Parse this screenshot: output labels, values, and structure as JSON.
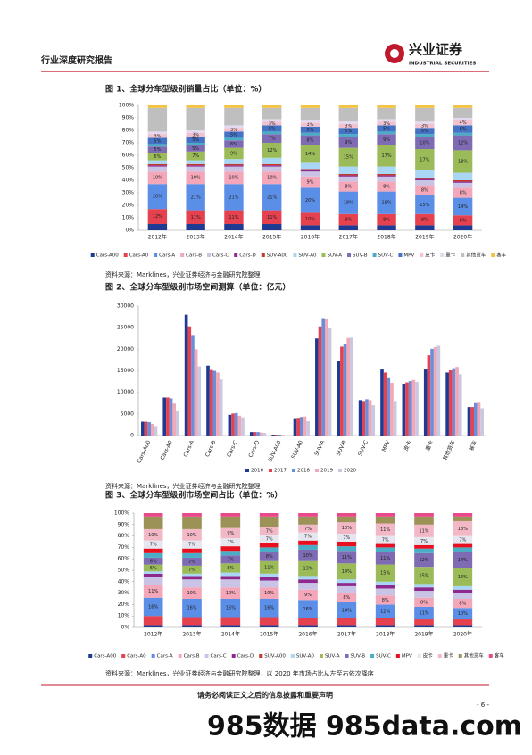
{
  "header": {
    "title": "行业深度研究报告",
    "logo_cn": "兴业证券",
    "logo_en": "INDUSTRIAL SECURITIES"
  },
  "chart_data": [
    {
      "type": "bar",
      "stacked": true,
      "title": "图 1、全球分车型级别销量占比（单位：%）",
      "categories": [
        "2012年",
        "2013年",
        "2014年",
        "2015年",
        "2016年",
        "2017年",
        "2018年",
        "2019年",
        "2020年"
      ],
      "ylim": [
        0,
        100
      ],
      "yticks": [
        {
          "value": 0,
          "label": "0%"
        },
        {
          "value": 10,
          "label": "10%"
        },
        {
          "value": 20,
          "label": "20%"
        },
        {
          "value": 30,
          "label": "30%"
        },
        {
          "value": 40,
          "label": "40%"
        },
        {
          "value": 50,
          "label": "50%"
        },
        {
          "value": 60,
          "label": "60%"
        },
        {
          "value": 70,
          "label": "70%"
        },
        {
          "value": 80,
          "label": "80%"
        },
        {
          "value": 90,
          "label": "90%"
        },
        {
          "value": 100,
          "label": "100%"
        }
      ],
      "series": [
        {
          "name": "Cars-A00",
          "color": "#1f3a93",
          "values": [
            5,
            5,
            5,
            5,
            4,
            4,
            4,
            4,
            4
          ]
        },
        {
          "name": "Cars-A0",
          "color": "#e5414f",
          "values": [
            12,
            11,
            11,
            11,
            10,
            9,
            9,
            9,
            8
          ],
          "value_labels": [
            "12%",
            "11%",
            "11%",
            "11%",
            "10%",
            "9%",
            "9%",
            "9%",
            "8%"
          ]
        },
        {
          "name": "Cars-A",
          "color": "#5b8ee6",
          "values": [
            20,
            21,
            21,
            21,
            20,
            18,
            18,
            15,
            14
          ],
          "value_labels": [
            "20%",
            "21%",
            "21%",
            "21%",
            "20%",
            "18%",
            "18%",
            "15%",
            "14%"
          ]
        },
        {
          "name": "Cars-B",
          "color": "#f4a7b9",
          "values": [
            10,
            10,
            10,
            10,
            9,
            8,
            8,
            8,
            8
          ],
          "value_labels": [
            "10%",
            "10%",
            "10%",
            "10%",
            "9%",
            "8%",
            "8%",
            "8%",
            "8%"
          ]
        },
        {
          "name": "Cars-C",
          "color": "#c9c3e6",
          "values": [
            4,
            4,
            4,
            4,
            4,
            4,
            4,
            4,
            4
          ]
        },
        {
          "name": "Cars-D",
          "color": "#8e2a8e",
          "values": [
            1,
            1,
            1,
            1,
            1,
            1,
            1,
            1,
            1
          ]
        },
        {
          "name": "SUV-A00",
          "color": "#c0392b",
          "values": [
            1,
            1,
            1,
            1,
            1,
            1,
            1,
            1,
            1
          ]
        },
        {
          "name": "SUV-A0",
          "color": "#a9d6f5",
          "values": [
            3,
            3,
            4,
            5,
            5,
            6,
            6,
            6,
            6
          ]
        },
        {
          "name": "SUV-A",
          "color": "#9bbb59",
          "values": [
            6,
            7,
            9,
            12,
            14,
            15,
            17,
            17,
            18
          ],
          "value_labels": [
            "6%",
            "7%",
            "9%",
            "12%",
            "14%",
            "15%",
            "17%",
            "17%",
            "18%"
          ]
        },
        {
          "name": "SUV-B",
          "color": "#7e6bb3",
          "values": [
            5,
            5,
            6,
            7,
            8,
            9,
            9,
            10,
            12
          ],
          "value_labels": [
            "5%",
            "5%",
            "6%",
            "7%",
            "8%",
            "9%",
            "9%",
            "10%",
            "12%"
          ]
        },
        {
          "name": "SUV-C",
          "color": "#4bacc6",
          "values": [
            2,
            2,
            2,
            2,
            2,
            2,
            2,
            2,
            2
          ]
        },
        {
          "name": "MPV",
          "color": "#4472c4",
          "values": [
            5,
            5,
            5,
            5,
            5,
            5,
            5,
            5,
            6
          ],
          "value_labels": [
            "5%",
            "5%",
            "5%",
            "5%",
            "5%",
            "5%",
            "5%",
            "5%",
            "6%"
          ]
        },
        {
          "name": "皮卡",
          "color": "#f2c2d0",
          "values": [
            3,
            3,
            3,
            3,
            3,
            3,
            3,
            3,
            4
          ],
          "value_labels": [
            "3%",
            "3%",
            "3%",
            "3%",
            "3%",
            "3%",
            "3%",
            "3%",
            "4%"
          ]
        },
        {
          "name": "重卡",
          "color": "#e4d9ef",
          "values": [
            2,
            2,
            2,
            2,
            2,
            2,
            2,
            2,
            2
          ]
        },
        {
          "name": "其他货车",
          "color": "#bfbfbf",
          "values": [
            19,
            18,
            14,
            9,
            10,
            11,
            9,
            11,
            8
          ]
        },
        {
          "name": "客车",
          "color": "#f5c342",
          "values": [
            2,
            2,
            2,
            2,
            2,
            2,
            2,
            2,
            2
          ]
        }
      ]
    },
    {
      "type": "bar",
      "stacked": false,
      "title": "图 2、全球分车型级别市场空间测算（单位：亿元）",
      "categories": [
        "Cars-A00",
        "Cars-A0",
        "Cars-A",
        "Cars-B",
        "Cars-C",
        "Cars-D",
        "SUV-A00",
        "SUV-A0",
        "SUV-A",
        "SUV-B",
        "SUV-C",
        "MPV",
        "皮卡",
        "重卡",
        "其他货车",
        "客车"
      ],
      "ylim": [
        0,
        30000
      ],
      "yticks": [
        0,
        5000,
        10000,
        15000,
        20000,
        25000,
        30000
      ],
      "series": [
        {
          "name": "2016",
          "color": "#1f3a93",
          "values": [
            3200,
            8800,
            28000,
            16200,
            4800,
            800,
            200,
            4000,
            22500,
            17300,
            8200,
            15300,
            12000,
            15300,
            14600,
            6600
          ]
        },
        {
          "name": "2017",
          "color": "#e5414f",
          "values": [
            3200,
            8800,
            25300,
            15200,
            5100,
            800,
            200,
            4100,
            25300,
            20600,
            8000,
            14600,
            12300,
            18600,
            15100,
            6600
          ]
        },
        {
          "name": "2018",
          "color": "#6a8fd8",
          "values": [
            3100,
            8600,
            23300,
            15000,
            5200,
            800,
            200,
            4300,
            27200,
            21200,
            8400,
            13500,
            12600,
            20100,
            15600,
            7500
          ]
        },
        {
          "name": "2019",
          "color": "#f2a8b6",
          "values": [
            2700,
            7400,
            20000,
            14600,
            4600,
            700,
            150,
            4400,
            27100,
            22600,
            8200,
            12200,
            12900,
            20500,
            15900,
            7600
          ]
        },
        {
          "name": "2020",
          "color": "#c8c8e0",
          "values": [
            2200,
            5800,
            16000,
            13000,
            4200,
            600,
            100,
            3300,
            24900,
            22700,
            7000,
            8000,
            12400,
            20800,
            14200,
            6300
          ]
        }
      ]
    },
    {
      "type": "bar",
      "stacked": true,
      "title": "图 3、全球分车型级别市场空间占比（单位：%）",
      "categories": [
        "2012年",
        "2013年",
        "2014年",
        "2015年",
        "2016年",
        "2017年",
        "2018年",
        "2019年",
        "2020年"
      ],
      "ylim": [
        0,
        100
      ],
      "yticks": [
        {
          "value": 0,
          "label": "0%"
        },
        {
          "value": 10,
          "label": "10%"
        },
        {
          "value": 20,
          "label": "20%"
        },
        {
          "value": 30,
          "label": "30%"
        },
        {
          "value": 40,
          "label": "40%"
        },
        {
          "value": 50,
          "label": "50%"
        },
        {
          "value": 60,
          "label": "60%"
        },
        {
          "value": 70,
          "label": "70%"
        },
        {
          "value": 80,
          "label": "80%"
        },
        {
          "value": 90,
          "label": "90%"
        },
        {
          "value": 100,
          "label": "100%"
        }
      ],
      "series": [
        {
          "name": "Cars-A00",
          "color": "#1f3a93",
          "values": [
            2,
            2,
            2,
            2,
            2,
            2,
            2,
            2,
            2
          ]
        },
        {
          "name": "Cars-A0",
          "color": "#e5414f",
          "values": [
            8,
            7,
            7,
            7,
            6,
            6,
            6,
            5,
            5
          ]
        },
        {
          "name": "Cars-A",
          "color": "#5b8ee6",
          "values": [
            16,
            16,
            16,
            16,
            16,
            14,
            12,
            11,
            10
          ],
          "value_labels": [
            "16%",
            "16%",
            "16%",
            "16%",
            "16%",
            "14%",
            "12%",
            "11%",
            "10%"
          ]
        },
        {
          "name": "Cars-B",
          "color": "#f4a7b9",
          "values": [
            11,
            10,
            10,
            10,
            9,
            8,
            8,
            8,
            8
          ],
          "value_labels": [
            "11%",
            "10%",
            "10%",
            "10%",
            "9%",
            "8%",
            "8%",
            "8%",
            "8%"
          ]
        },
        {
          "name": "Cars-C",
          "color": "#c9c3e6",
          "values": [
            7,
            7,
            7,
            6,
            6,
            6,
            6,
            6,
            5
          ]
        },
        {
          "name": "Cars-D",
          "color": "#8e2a8e",
          "values": [
            3,
            3,
            3,
            3,
            3,
            3,
            3,
            3,
            3
          ]
        },
        {
          "name": "SUV-A00",
          "color": "#c0392b",
          "values": [
            0,
            0,
            0,
            0,
            0,
            0,
            0,
            0,
            0
          ]
        },
        {
          "name": "SUV-A0",
          "color": "#a9d6f5",
          "values": [
            2,
            2,
            3,
            3,
            3,
            3,
            3,
            3,
            3
          ]
        },
        {
          "name": "SUV-A",
          "color": "#9bbb59",
          "values": [
            6,
            7,
            8,
            11,
            13,
            14,
            15,
            15,
            16
          ],
          "value_labels": [
            "6%",
            "7%",
            "8%",
            "11%",
            "13%",
            "14%",
            "15%",
            "15%",
            "16%"
          ]
        },
        {
          "name": "SUV-B",
          "color": "#7e6bb3",
          "values": [
            6,
            7,
            7,
            8,
            10,
            11,
            11,
            12,
            14
          ],
          "value_labels": [
            "6%",
            "7%",
            "7%",
            "8%",
            "10%",
            "11%",
            "11%",
            "12%",
            "14%"
          ]
        },
        {
          "name": "SUV-C",
          "color": "#4bacc6",
          "values": [
            4,
            4,
            4,
            4,
            4,
            4,
            4,
            4,
            4
          ]
        },
        {
          "name": "MPV",
          "color": "#e8101e",
          "values": [
            4,
            4,
            4,
            4,
            4,
            4,
            3,
            3,
            3
          ]
        },
        {
          "name": "皮卡",
          "color": "#e6e6f0",
          "values": [
            7,
            7,
            7,
            7,
            7,
            7,
            7,
            7,
            7
          ],
          "value_labels": [
            "7%",
            "7%",
            "7%",
            "7%",
            "7%",
            "7%",
            "7%",
            "7%",
            "7%"
          ]
        },
        {
          "name": "重卡",
          "color": "#f2b8c6",
          "values": [
            10,
            10,
            9,
            7,
            7,
            10,
            11,
            11,
            13
          ],
          "value_labels": [
            "10%",
            "10%",
            "9%",
            "7%",
            "7%",
            "10%",
            "11%",
            "11%",
            "13%"
          ]
        },
        {
          "name": "其他货车",
          "color": "#9c9257",
          "values": [
            11,
            11,
            10,
            9,
            7,
            5,
            6,
            7,
            4
          ]
        },
        {
          "name": "客车",
          "color": "#e8488a",
          "values": [
            3,
            3,
            3,
            3,
            3,
            3,
            3,
            3,
            3
          ]
        }
      ]
    }
  ],
  "sources": [
    "资料来源：Marklines，兴业证券经济与金融研究院整理",
    "资料来源：Marklines，兴业证券经济与金融研究院整理",
    "资料来源：Marklines，兴业证券经济与金融研究院整理，以 2020 年市场占比从左至右依次降序"
  ],
  "footer": {
    "notice": "请务必阅读正文之后的信息披露和重要声明",
    "page": "- 6 -"
  },
  "watermark": "985数据 985data.com"
}
